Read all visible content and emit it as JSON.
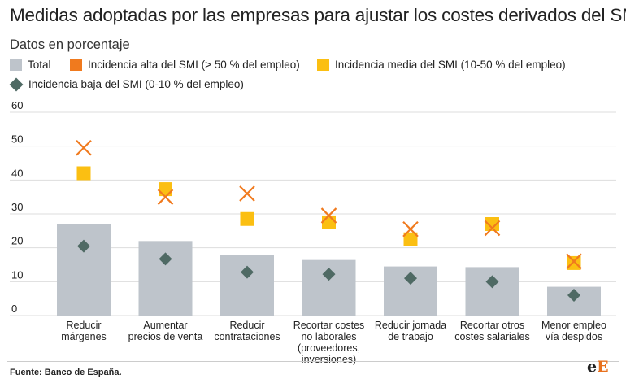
{
  "title": "Medidas adoptadas por las empresas para ajustar los costes derivados del SMI",
  "subtitle": "Datos en porcentaje",
  "source": "Fuente: Banco de España.",
  "logo": {
    "part1": "e",
    "part2": "E"
  },
  "colors": {
    "total": "#bec4cb",
    "alta": "#f07a1e",
    "media": "#fbbf12",
    "baja": "#4f6a64",
    "grid": "#dddddd",
    "text": "#222222"
  },
  "chart_data": {
    "type": "bar",
    "ylim": [
      0,
      60
    ],
    "yticks": [
      0,
      10,
      20,
      30,
      40,
      50,
      60
    ],
    "grid": true,
    "legend_position": "top",
    "categories": [
      [
        "Reducir",
        "márgenes"
      ],
      [
        "Aumentar",
        "precios de venta"
      ],
      [
        "Reducir",
        "contrataciones"
      ],
      [
        "Recortar costes",
        "no laborales",
        "(proveedores,",
        "inversiones)"
      ],
      [
        "Reducir jornada",
        "de trabajo"
      ],
      [
        "Recortar otros",
        "costes salariales"
      ],
      [
        "Menor empleo",
        "vía despidos"
      ]
    ],
    "series": [
      {
        "name": "Total",
        "marker": "bar",
        "values": [
          27,
          22,
          17.8,
          16.4,
          14.5,
          14.3,
          8.5
        ]
      },
      {
        "name": "Incidencia alta del SMI (> 50 % del empleo)",
        "marker": "cross",
        "values": [
          49.5,
          35,
          36,
          29.5,
          25.5,
          25.8,
          16
        ]
      },
      {
        "name": "Incidencia media del SMI (10-50 % del empleo)",
        "marker": "square",
        "values": [
          42,
          37.3,
          28.5,
          27.5,
          22.5,
          27,
          15.5
        ]
      },
      {
        "name": "Incidencia baja del SMI (0-10 % del empleo)",
        "marker": "diamond",
        "values": [
          20.5,
          16.7,
          12.8,
          12.2,
          11,
          10,
          6
        ]
      }
    ]
  }
}
